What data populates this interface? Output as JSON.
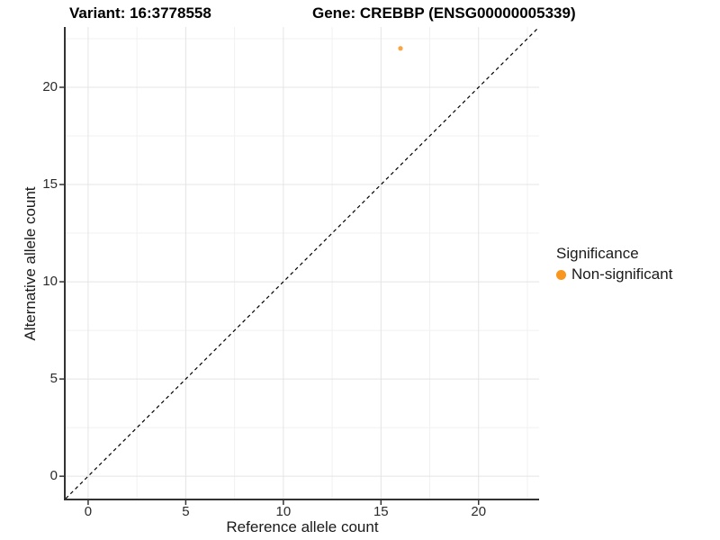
{
  "chart_data": {
    "type": "scatter",
    "title_variant": "Variant: 16:3778558",
    "title_gene": "Gene: CREBBP (ENSG00000005339)",
    "xlabel": "Reference allele count",
    "ylabel": "Alternative allele count",
    "xlim": [
      -1.15,
      23.1
    ],
    "ylim": [
      -1.15,
      23.1
    ],
    "x_ticks": [
      0,
      5,
      10,
      15,
      20
    ],
    "y_ticks": [
      0,
      5,
      10,
      15,
      20
    ],
    "x_minor": [
      2.5,
      7.5,
      12.5,
      17.5,
      22.5
    ],
    "y_minor": [
      2.5,
      7.5,
      12.5,
      17.5,
      22.5
    ],
    "grid": "major and minor gridlines on white background",
    "points": [
      {
        "x": 16,
        "y": 22,
        "series": "Non-significant"
      }
    ],
    "reference_line": {
      "slope": 1,
      "intercept": 0,
      "style": "dashed",
      "color": "#000000"
    },
    "legend": {
      "title": "Significance",
      "position": "right",
      "items": [
        {
          "label": "Non-significant",
          "color": "#F8961D"
        }
      ]
    },
    "colors": {
      "point": "#F9A543",
      "grid_major": "#E4E4E4",
      "grid_minor": "#F1F1F1",
      "axis": "#333333",
      "tick_text": "#2B2B2B"
    }
  }
}
